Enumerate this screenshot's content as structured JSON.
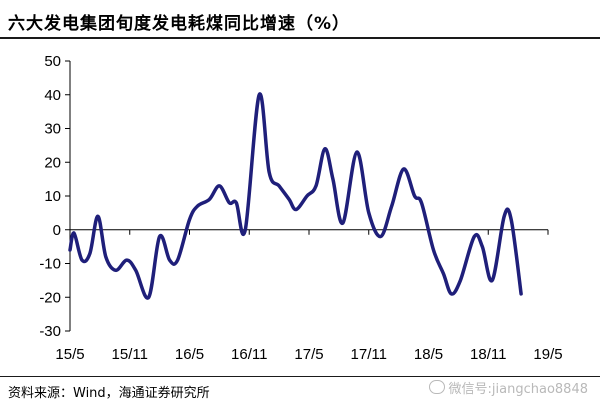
{
  "header": {
    "title": "六大发电集团旬度发电耗煤同比增速（%）"
  },
  "footer": {
    "source": "资料来源：Wind，海通证券研究所",
    "watermark": "微信号:jiangchao8848"
  },
  "colors": {
    "line": "#1f1f7a",
    "axis": "#000000",
    "text": "#000000"
  },
  "chart_data": {
    "type": "line",
    "title": "六大发电集团旬度发电耗煤同比增速（%）",
    "xlabel": "",
    "ylabel": "",
    "ylim": [
      -30,
      50
    ],
    "yticks": [
      -30,
      -20,
      -10,
      0,
      10,
      20,
      30,
      40,
      50
    ],
    "xlim": [
      0,
      48
    ],
    "xticks": [
      {
        "label": "15/5",
        "x": 0
      },
      {
        "label": "15/11",
        "x": 6
      },
      {
        "label": "16/5",
        "x": 12
      },
      {
        "label": "16/11",
        "x": 18
      },
      {
        "label": "17/5",
        "x": 24
      },
      {
        "label": "17/11",
        "x": 30
      },
      {
        "label": "18/5",
        "x": 36
      },
      {
        "label": "18/11",
        "x": 42
      },
      {
        "label": "19/5",
        "x": 48
      }
    ],
    "grid": false,
    "legend": "none",
    "series": [
      {
        "points": [
          [
            0.0,
            -6
          ],
          [
            0.4,
            -1
          ],
          [
            1.2,
            -9
          ],
          [
            2.0,
            -7
          ],
          [
            2.8,
            4
          ],
          [
            3.6,
            -8
          ],
          [
            4.6,
            -12
          ],
          [
            5.7,
            -9
          ],
          [
            6.6,
            -12
          ],
          [
            7.9,
            -20
          ],
          [
            9.0,
            -2
          ],
          [
            10.0,
            -9
          ],
          [
            10.8,
            -9
          ],
          [
            12.0,
            3
          ],
          [
            12.8,
            7
          ],
          [
            14.0,
            9
          ],
          [
            15.0,
            13
          ],
          [
            16.0,
            8
          ],
          [
            16.7,
            8
          ],
          [
            17.6,
            0
          ],
          [
            19.0,
            40
          ],
          [
            20.0,
            17
          ],
          [
            21.0,
            13
          ],
          [
            22.0,
            9
          ],
          [
            22.7,
            6
          ],
          [
            23.8,
            10
          ],
          [
            24.7,
            13
          ],
          [
            25.6,
            24
          ],
          [
            26.4,
            15
          ],
          [
            27.4,
            2
          ],
          [
            28.8,
            23
          ],
          [
            30.0,
            5
          ],
          [
            31.2,
            -2
          ],
          [
            32.3,
            7
          ],
          [
            33.5,
            18
          ],
          [
            34.6,
            10
          ],
          [
            35.3,
            8
          ],
          [
            36.5,
            -6
          ],
          [
            37.5,
            -13
          ],
          [
            38.3,
            -19
          ],
          [
            39.2,
            -15
          ],
          [
            40.6,
            -2
          ],
          [
            41.4,
            -5
          ],
          [
            42.4,
            -15
          ],
          [
            43.6,
            4
          ],
          [
            44.3,
            3
          ],
          [
            45.3,
            -19
          ]
        ]
      }
    ]
  }
}
